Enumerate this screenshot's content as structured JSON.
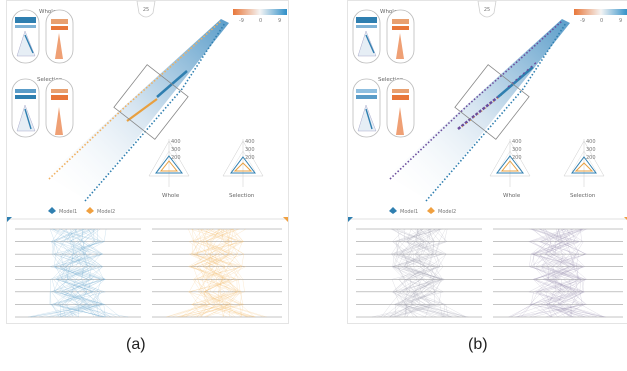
{
  "panels": [
    {
      "id": "a",
      "caption": "(a)",
      "page_number": "25",
      "whole_label": "Whole",
      "selection_label": "Selection",
      "legend_ticks": [
        "-9",
        "0",
        "9"
      ],
      "radar_labels": [
        "Whole",
        "Selection"
      ],
      "radar_ticks": [
        "400",
        "300",
        "200",
        "100"
      ],
      "model_labels": [
        "Model1",
        "Model2"
      ],
      "colors": {
        "model1": "#2f7fb0",
        "model2": "#f0a040",
        "parallel_left": "#6aa6cc",
        "parallel_right": "#f2b865"
      }
    },
    {
      "id": "b",
      "caption": "(b)",
      "page_number": "25",
      "whole_label": "Whole",
      "selection_label": "Selection",
      "legend_ticks": [
        "-9",
        "0",
        "9"
      ],
      "radar_labels": [
        "Whole",
        "Selection"
      ],
      "radar_ticks": [
        "400",
        "300",
        "200",
        "100"
      ],
      "model_labels": [
        "Model1",
        "Model2"
      ],
      "colors": {
        "model1": "#2f7fb0",
        "model2": "#f0a040",
        "parallel_left": "#9a9aa8",
        "parallel_right": "#9a90b0"
      }
    }
  ],
  "palette": {
    "blue": "#2f7fb0",
    "orange": "#e8773a",
    "purple": "#6a4c9c",
    "grey": "#cfcfcf"
  }
}
